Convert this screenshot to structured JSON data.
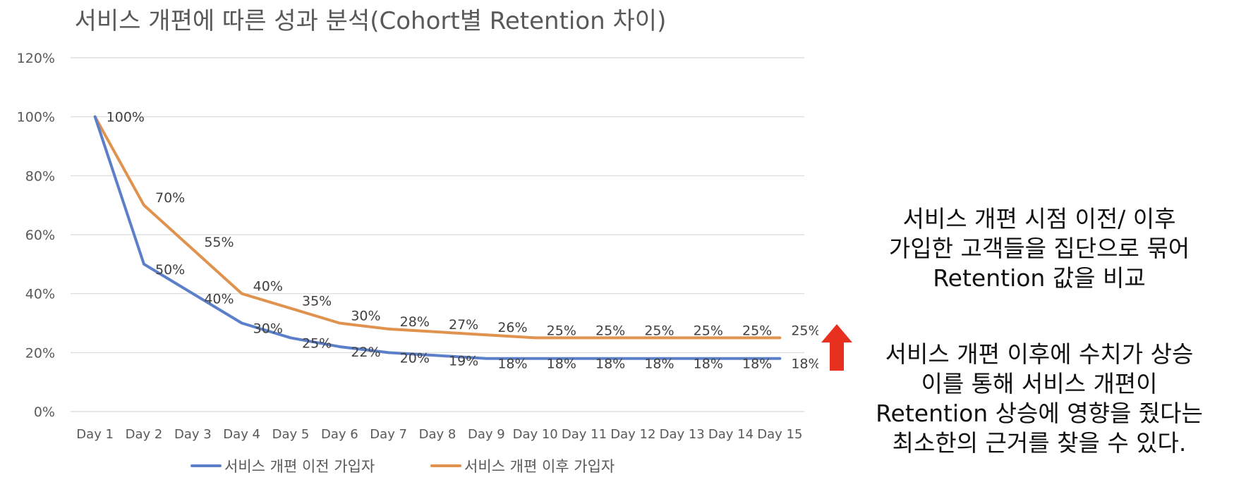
{
  "colors": {
    "before": "#5B7FC8",
    "after": "#E0924F",
    "arrow": "#E8301E",
    "grid": "#D9D9D9"
  },
  "chart_data": {
    "type": "line",
    "title": "서비스 개편에 따른 성과 분석(Cohort별 Retention 차이)",
    "categories": [
      "Day 1",
      "Day 2",
      "Day 3",
      "Day 4",
      "Day 5",
      "Day 6",
      "Day 7",
      "Day 8",
      "Day 9",
      "Day 10",
      "Day 11",
      "Day 12",
      "Day 13",
      "Day 14",
      "Day 15"
    ],
    "ylim": [
      0,
      120
    ],
    "yticks": [
      "0%",
      "20%",
      "40%",
      "60%",
      "80%",
      "100%",
      "120%"
    ],
    "grid": true,
    "legend_position": "bottom",
    "series": [
      {
        "name": "서비스 개편 이전 가입자",
        "values": [
          100,
          50,
          40,
          30,
          25,
          22,
          20,
          19,
          18,
          18,
          18,
          18,
          18,
          18,
          18
        ],
        "labels": [
          "100%",
          "50%",
          "40%",
          "30%",
          "25%",
          "22%",
          "20%",
          "19%",
          "18%",
          "18%",
          "18%",
          "18%",
          "18%",
          "18%",
          "18%"
        ]
      },
      {
        "name": "서비스 개편 이후 가입자",
        "values": [
          100,
          70,
          55,
          40,
          35,
          30,
          28,
          27,
          26,
          25,
          25,
          25,
          25,
          25,
          25
        ],
        "labels": [
          "",
          "70%",
          "55%",
          "40%",
          "35%",
          "30%",
          "28%",
          "27%",
          "26%",
          "25%",
          "25%",
          "25%",
          "25%",
          "25%",
          "25%"
        ]
      }
    ]
  },
  "notes": {
    "block1": [
      "서비스 개편 시점 이전/ 이후",
      "가입한 고객들을 집단으로 묶어",
      "Retention 값을 비교"
    ],
    "block2": [
      "서비스 개편 이후에 수치가 상승",
      "이를 통해 서비스 개편이",
      "Retention 상승에 영향을 줬다는",
      "최소한의 근거를 찾을 수 있다."
    ]
  },
  "arrow_icon": "arrow-up-icon"
}
